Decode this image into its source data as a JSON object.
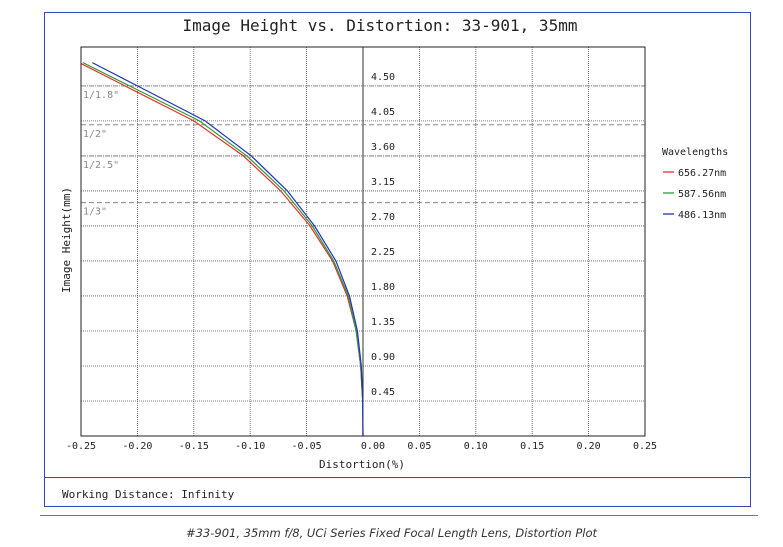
{
  "chart_data": {
    "type": "line",
    "title": "Image Height vs. Distortion: 33-901, 35mm",
    "xlabel": "Distortion(%)",
    "ylabel": "Image Height(mm)",
    "xlim": [
      -0.25,
      0.25
    ],
    "ylim": [
      0,
      5.0
    ],
    "x_ticks": [
      "-0.25",
      "-0.20",
      "-0.15",
      "-0.10",
      "-0.05",
      "0.00",
      "0.05",
      "0.10",
      "0.15",
      "0.20",
      "0.25"
    ],
    "y_ticks": [
      "0.45",
      "0.90",
      "1.35",
      "1.80",
      "2.25",
      "2.70",
      "3.15",
      "3.60",
      "4.05",
      "4.50"
    ],
    "grid": true,
    "legend_title": "Wavelengths",
    "legend_position": "right",
    "sensor_formats": [
      {
        "label": "1/1.8\"",
        "height": 4.5
      },
      {
        "label": "1/2\"",
        "height": 4.0
      },
      {
        "label": "1/2.5\"",
        "height": 3.6
      },
      {
        "label": "1/3\"",
        "height": 3.0
      }
    ],
    "series": [
      {
        "name": "656.27nm",
        "color": "#e2342a",
        "points": [
          [
            0,
            0
          ],
          [
            -0.0003,
            0.45
          ],
          [
            -0.002,
            0.9
          ],
          [
            -0.006,
            1.35
          ],
          [
            -0.014,
            1.8
          ],
          [
            -0.027,
            2.25
          ],
          [
            -0.047,
            2.7
          ],
          [
            -0.073,
            3.15
          ],
          [
            -0.106,
            3.6
          ],
          [
            -0.15,
            4.05
          ],
          [
            -0.211,
            4.5
          ]
        ]
      },
      {
        "name": "587.56nm",
        "color": "#2f9a3a",
        "points": [
          [
            0,
            0
          ],
          [
            -0.0003,
            0.45
          ],
          [
            -0.002,
            0.9
          ],
          [
            -0.006,
            1.35
          ],
          [
            -0.013,
            1.8
          ],
          [
            -0.026,
            2.25
          ],
          [
            -0.045,
            2.7
          ],
          [
            -0.07,
            3.15
          ],
          [
            -0.103,
            3.6
          ],
          [
            -0.145,
            4.05
          ],
          [
            -0.207,
            4.5
          ]
        ]
      },
      {
        "name": "486.13nm",
        "color": "#2233b8",
        "points": [
          [
            0,
            0
          ],
          [
            -0.0003,
            0.45
          ],
          [
            -0.0015,
            0.9
          ],
          [
            -0.005,
            1.35
          ],
          [
            -0.012,
            1.8
          ],
          [
            -0.024,
            2.25
          ],
          [
            -0.043,
            2.7
          ],
          [
            -0.067,
            3.15
          ],
          [
            -0.099,
            3.6
          ],
          [
            -0.14,
            4.05
          ],
          [
            -0.2,
            4.5
          ]
        ]
      }
    ]
  },
  "working_distance": "Working Distance: Infinity",
  "caption": "#33-901, 35mm f/8, UCi Series Fixed Focal Length Lens, Distortion Plot",
  "colors": {
    "frame": "#3a47b8",
    "grid": "#555555",
    "format_line": "#888888"
  }
}
